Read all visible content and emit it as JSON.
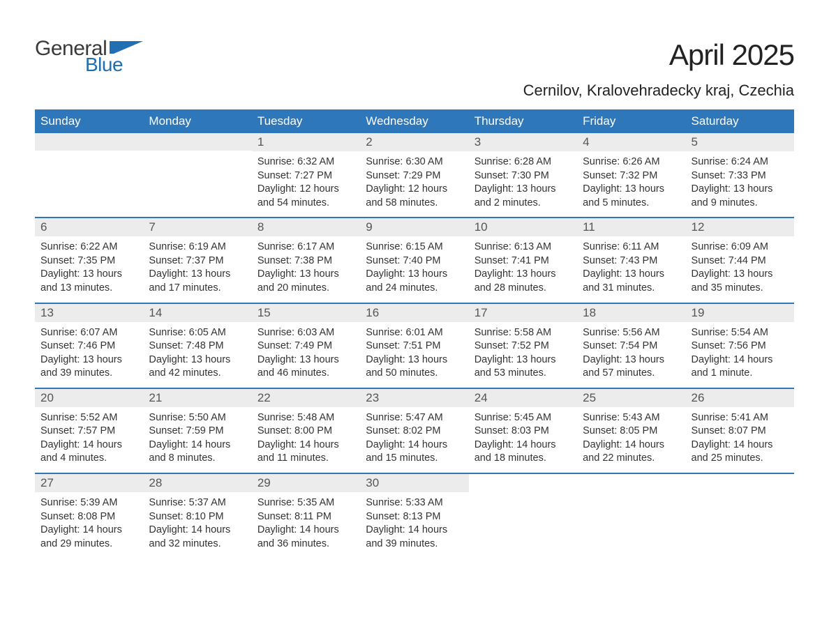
{
  "logo": {
    "text_general": "General",
    "text_blue": "Blue",
    "icon_color": "#1f6fb2"
  },
  "header": {
    "month_title": "April 2025",
    "location": "Cernilov, Kralovehradecky kraj, Czechia"
  },
  "colors": {
    "header_bg": "#2f77bb",
    "header_text": "#ffffff",
    "daynum_bg": "#ececec",
    "daynum_text": "#555555",
    "body_text": "#333333",
    "divider": "#2f77bb",
    "page_bg": "#ffffff"
  },
  "typography": {
    "month_title_fontsize": 42,
    "location_fontsize": 22,
    "weekday_fontsize": 17,
    "daynum_fontsize": 17,
    "content_fontsize": 14.5
  },
  "weekdays": [
    "Sunday",
    "Monday",
    "Tuesday",
    "Wednesday",
    "Thursday",
    "Friday",
    "Saturday"
  ],
  "weeks": [
    [
      {
        "num": "",
        "lines": []
      },
      {
        "num": "",
        "lines": []
      },
      {
        "num": "1",
        "lines": [
          "Sunrise: 6:32 AM",
          "Sunset: 7:27 PM",
          "Daylight: 12 hours",
          "and 54 minutes."
        ]
      },
      {
        "num": "2",
        "lines": [
          "Sunrise: 6:30 AM",
          "Sunset: 7:29 PM",
          "Daylight: 12 hours",
          "and 58 minutes."
        ]
      },
      {
        "num": "3",
        "lines": [
          "Sunrise: 6:28 AM",
          "Sunset: 7:30 PM",
          "Daylight: 13 hours",
          "and 2 minutes."
        ]
      },
      {
        "num": "4",
        "lines": [
          "Sunrise: 6:26 AM",
          "Sunset: 7:32 PM",
          "Daylight: 13 hours",
          "and 5 minutes."
        ]
      },
      {
        "num": "5",
        "lines": [
          "Sunrise: 6:24 AM",
          "Sunset: 7:33 PM",
          "Daylight: 13 hours",
          "and 9 minutes."
        ]
      }
    ],
    [
      {
        "num": "6",
        "lines": [
          "Sunrise: 6:22 AM",
          "Sunset: 7:35 PM",
          "Daylight: 13 hours",
          "and 13 minutes."
        ]
      },
      {
        "num": "7",
        "lines": [
          "Sunrise: 6:19 AM",
          "Sunset: 7:37 PM",
          "Daylight: 13 hours",
          "and 17 minutes."
        ]
      },
      {
        "num": "8",
        "lines": [
          "Sunrise: 6:17 AM",
          "Sunset: 7:38 PM",
          "Daylight: 13 hours",
          "and 20 minutes."
        ]
      },
      {
        "num": "9",
        "lines": [
          "Sunrise: 6:15 AM",
          "Sunset: 7:40 PM",
          "Daylight: 13 hours",
          "and 24 minutes."
        ]
      },
      {
        "num": "10",
        "lines": [
          "Sunrise: 6:13 AM",
          "Sunset: 7:41 PM",
          "Daylight: 13 hours",
          "and 28 minutes."
        ]
      },
      {
        "num": "11",
        "lines": [
          "Sunrise: 6:11 AM",
          "Sunset: 7:43 PM",
          "Daylight: 13 hours",
          "and 31 minutes."
        ]
      },
      {
        "num": "12",
        "lines": [
          "Sunrise: 6:09 AM",
          "Sunset: 7:44 PM",
          "Daylight: 13 hours",
          "and 35 minutes."
        ]
      }
    ],
    [
      {
        "num": "13",
        "lines": [
          "Sunrise: 6:07 AM",
          "Sunset: 7:46 PM",
          "Daylight: 13 hours",
          "and 39 minutes."
        ]
      },
      {
        "num": "14",
        "lines": [
          "Sunrise: 6:05 AM",
          "Sunset: 7:48 PM",
          "Daylight: 13 hours",
          "and 42 minutes."
        ]
      },
      {
        "num": "15",
        "lines": [
          "Sunrise: 6:03 AM",
          "Sunset: 7:49 PM",
          "Daylight: 13 hours",
          "and 46 minutes."
        ]
      },
      {
        "num": "16",
        "lines": [
          "Sunrise: 6:01 AM",
          "Sunset: 7:51 PM",
          "Daylight: 13 hours",
          "and 50 minutes."
        ]
      },
      {
        "num": "17",
        "lines": [
          "Sunrise: 5:58 AM",
          "Sunset: 7:52 PM",
          "Daylight: 13 hours",
          "and 53 minutes."
        ]
      },
      {
        "num": "18",
        "lines": [
          "Sunrise: 5:56 AM",
          "Sunset: 7:54 PM",
          "Daylight: 13 hours",
          "and 57 minutes."
        ]
      },
      {
        "num": "19",
        "lines": [
          "Sunrise: 5:54 AM",
          "Sunset: 7:56 PM",
          "Daylight: 14 hours",
          "and 1 minute."
        ]
      }
    ],
    [
      {
        "num": "20",
        "lines": [
          "Sunrise: 5:52 AM",
          "Sunset: 7:57 PM",
          "Daylight: 14 hours",
          "and 4 minutes."
        ]
      },
      {
        "num": "21",
        "lines": [
          "Sunrise: 5:50 AM",
          "Sunset: 7:59 PM",
          "Daylight: 14 hours",
          "and 8 minutes."
        ]
      },
      {
        "num": "22",
        "lines": [
          "Sunrise: 5:48 AM",
          "Sunset: 8:00 PM",
          "Daylight: 14 hours",
          "and 11 minutes."
        ]
      },
      {
        "num": "23",
        "lines": [
          "Sunrise: 5:47 AM",
          "Sunset: 8:02 PM",
          "Daylight: 14 hours",
          "and 15 minutes."
        ]
      },
      {
        "num": "24",
        "lines": [
          "Sunrise: 5:45 AM",
          "Sunset: 8:03 PM",
          "Daylight: 14 hours",
          "and 18 minutes."
        ]
      },
      {
        "num": "25",
        "lines": [
          "Sunrise: 5:43 AM",
          "Sunset: 8:05 PM",
          "Daylight: 14 hours",
          "and 22 minutes."
        ]
      },
      {
        "num": "26",
        "lines": [
          "Sunrise: 5:41 AM",
          "Sunset: 8:07 PM",
          "Daylight: 14 hours",
          "and 25 minutes."
        ]
      }
    ],
    [
      {
        "num": "27",
        "lines": [
          "Sunrise: 5:39 AM",
          "Sunset: 8:08 PM",
          "Daylight: 14 hours",
          "and 29 minutes."
        ]
      },
      {
        "num": "28",
        "lines": [
          "Sunrise: 5:37 AM",
          "Sunset: 8:10 PM",
          "Daylight: 14 hours",
          "and 32 minutes."
        ]
      },
      {
        "num": "29",
        "lines": [
          "Sunrise: 5:35 AM",
          "Sunset: 8:11 PM",
          "Daylight: 14 hours",
          "and 36 minutes."
        ]
      },
      {
        "num": "30",
        "lines": [
          "Sunrise: 5:33 AM",
          "Sunset: 8:13 PM",
          "Daylight: 14 hours",
          "and 39 minutes."
        ]
      },
      {
        "num": "",
        "lines": []
      },
      {
        "num": "",
        "lines": []
      },
      {
        "num": "",
        "lines": []
      }
    ]
  ]
}
